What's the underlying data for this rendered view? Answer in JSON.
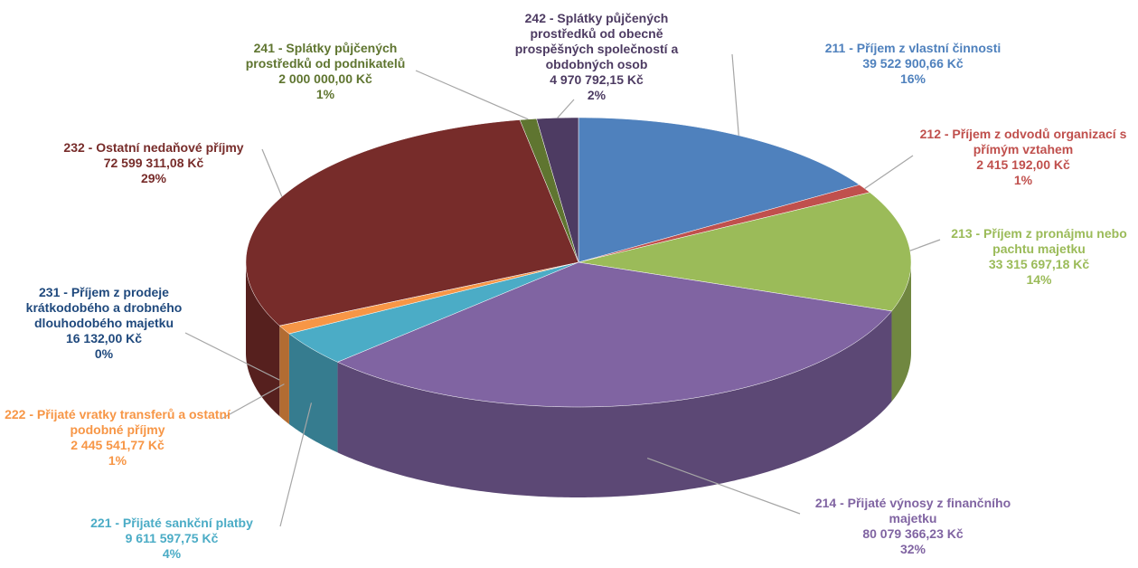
{
  "chart_data": {
    "type": "pie3d",
    "categories": [
      "211 - Příjem z vlastní činnosti",
      "212 - Příjem z odvodů organizací s přímým vztahem",
      "213 - Příjem z pronájmu nebo pachtu majetku",
      "214 - Přijaté výnosy z finančního majetku",
      "221 - Přijaté sankční platby",
      "222 - Přijaté vratky transferů a ostatní podobné příjmy",
      "231 - Příjem z prodeje krátkodobého a drobného dlouhodobého majetku",
      "232 - Ostatní nedaňové příjmy",
      "241 - Splátky půjčených prostředků od podnikatelů",
      "242 - Splátky půjčených prostředků od obecně prospěšných společností a obdobných osob"
    ],
    "values": [
      39522900.66,
      2415192.0,
      33315697.18,
      80079366.23,
      9611597.75,
      2445541.77,
      16132.0,
      72599311.08,
      2000000.0,
      4970792.15
    ],
    "value_labels": [
      "39 522 900,66 Kč",
      "2 415 192,00 Kč",
      "33 315 697,18 Kč",
      "80 079 366,23 Kč",
      "9 611 597,75 Kč",
      "2 445 541,77 Kč",
      "16 132,00 Kč",
      "72 599 311,08 Kč",
      "2 000 000,00 Kč",
      "4 970 792,15 Kč"
    ],
    "percent_labels": [
      "16%",
      "1%",
      "14%",
      "32%",
      "4%",
      "1%",
      "0%",
      "29%",
      "1%",
      "2%"
    ],
    "colors": [
      "#4f81bd",
      "#c0504d",
      "#9bbb59",
      "#8064a2",
      "#4bacc6",
      "#f79646",
      "#1f497d",
      "#772c2a",
      "#5f7530",
      "#4d3b62"
    ]
  }
}
